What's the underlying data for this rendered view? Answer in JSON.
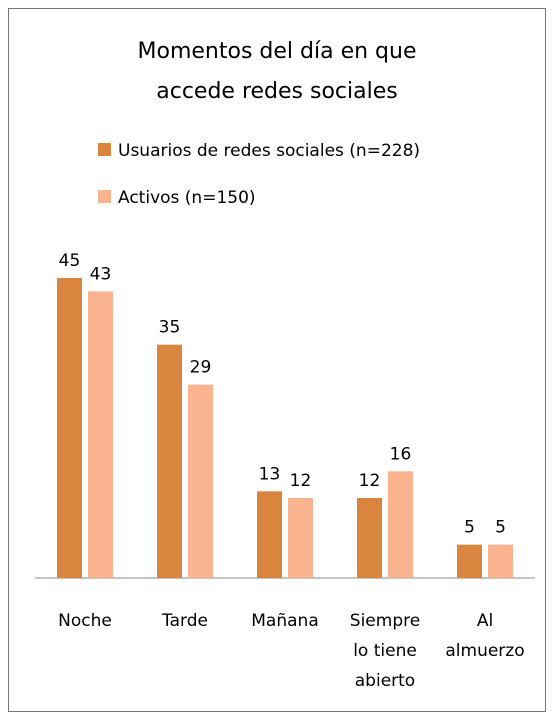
{
  "chart_data": {
    "type": "bar",
    "title": "Momentos del día en que accede redes sociales",
    "categories": [
      "Noche",
      "Tarde",
      "Mañana",
      "Siempre lo tiene abierto",
      "Al almuerzo"
    ],
    "series": [
      {
        "name": "Usuarios de redes sociales (n=228)",
        "color": "#d9843f",
        "values": [
          45,
          35,
          13,
          12,
          5
        ]
      },
      {
        "name": "Activos (n=150)",
        "color": "#f9b38e",
        "values": [
          43,
          29,
          12,
          16,
          5
        ]
      }
    ]
  }
}
